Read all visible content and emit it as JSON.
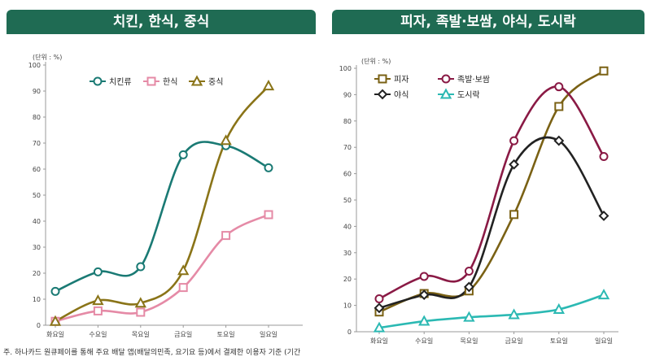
{
  "banners": {
    "left": "치킨, 한식, 중식",
    "right": "피자, 족발·보쌈, 야식, 도시락"
  },
  "footnote": "주. 하나카드 원큐페이를 통해 주요 배달 앱(배달의민족, 요기요 등)에서 결제한 이용자 기준 (기간",
  "chart_data": [
    {
      "type": "line",
      "title": "치킨, 한식, 중식",
      "unit_label": "(단위 : %)",
      "categories": [
        "화요일",
        "수요일",
        "목요일",
        "금요일",
        "토요일",
        "일요일"
      ],
      "ylim": [
        0,
        100
      ],
      "yticks": [
        0,
        10,
        20,
        30,
        40,
        50,
        60,
        70,
        80,
        90,
        100
      ],
      "legend_position": "top-left",
      "series": [
        {
          "name": "치킨류",
          "color": "#1a7a74",
          "marker": "circle",
          "values": [
            13,
            20.5,
            22.5,
            65.5,
            69,
            60.5
          ]
        },
        {
          "name": "한식",
          "color": "#e58aa6",
          "marker": "square",
          "values": [
            1.5,
            5.5,
            5,
            14.5,
            34.5,
            42.5
          ]
        },
        {
          "name": "중식",
          "color": "#8a7418",
          "marker": "triangle",
          "values": [
            1.5,
            9.5,
            8.5,
            21,
            71,
            92
          ]
        }
      ]
    },
    {
      "type": "line",
      "title": "피자, 족발·보쌈, 야식, 도시락",
      "unit_label": "(단위 : %)",
      "categories": [
        "화요일",
        "수요일",
        "목요일",
        "금요일",
        "토요일",
        "일요일"
      ],
      "ylim": [
        0,
        100
      ],
      "yticks": [
        0,
        10,
        20,
        30,
        40,
        50,
        60,
        70,
        80,
        90,
        100
      ],
      "legend_position": "top-left",
      "series": [
        {
          "name": "피자",
          "color": "#7a6114",
          "marker": "square",
          "values": [
            7.5,
            14.5,
            15.5,
            44.5,
            85.5,
            99
          ]
        },
        {
          "name": "족발·보쌈",
          "color": "#8a1a45",
          "marker": "circle",
          "values": [
            12.5,
            21,
            23,
            72.5,
            93,
            66.5
          ]
        },
        {
          "name": "야식",
          "color": "#222222",
          "marker": "diamond",
          "values": [
            9,
            14,
            17,
            63.5,
            72.5,
            44
          ]
        },
        {
          "name": "도시락",
          "color": "#2bb9b3",
          "marker": "triangle",
          "values": [
            1.5,
            4,
            5.5,
            6.5,
            8.5,
            14
          ]
        }
      ]
    }
  ]
}
